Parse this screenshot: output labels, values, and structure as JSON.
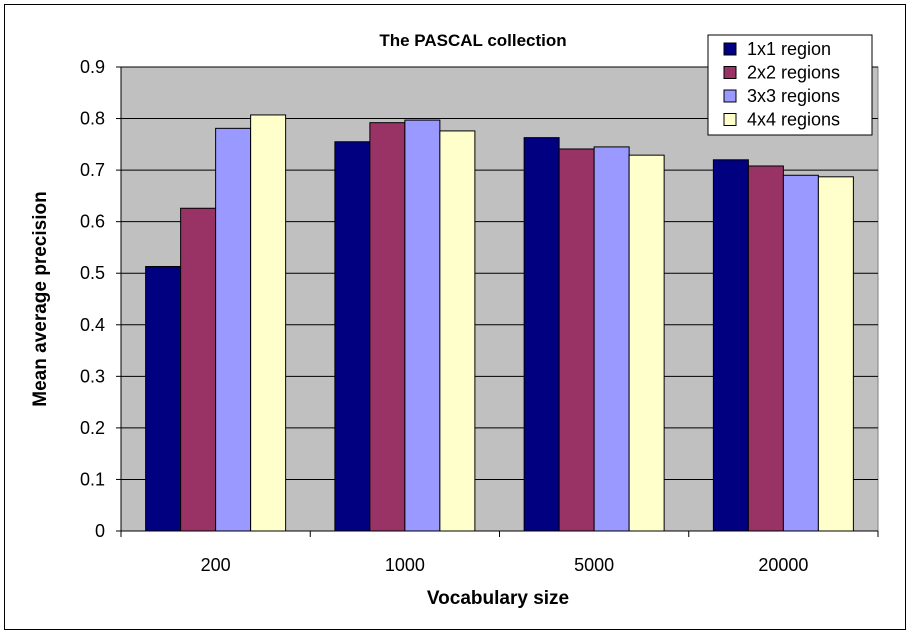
{
  "chart_data": {
    "type": "bar",
    "title": "The PASCAL collection",
    "xlabel": "Vocabulary size",
    "ylabel": "Mean average precision",
    "categories": [
      "200",
      "1000",
      "5000",
      "20000"
    ],
    "ylim": [
      0,
      0.9
    ],
    "yticks": [
      "0",
      "0.1",
      "0.2",
      "0.3",
      "0.4",
      "0.5",
      "0.6",
      "0.7",
      "0.8",
      "0.9"
    ],
    "grid": true,
    "legend_position": "top-right",
    "plot_background": "#C0C0C0",
    "series": [
      {
        "name": "1x1 region",
        "color": "#000080",
        "values": [
          0.513,
          0.755,
          0.763,
          0.72
        ]
      },
      {
        "name": "2x2 regions",
        "color": "#993366",
        "values": [
          0.626,
          0.792,
          0.741,
          0.708
        ]
      },
      {
        "name": "3x3 regions",
        "color": "#9999FF",
        "values": [
          0.781,
          0.797,
          0.745,
          0.69
        ]
      },
      {
        "name": "4x4 regions",
        "color": "#FFFFCC",
        "values": [
          0.807,
          0.776,
          0.729,
          0.687
        ]
      }
    ]
  }
}
